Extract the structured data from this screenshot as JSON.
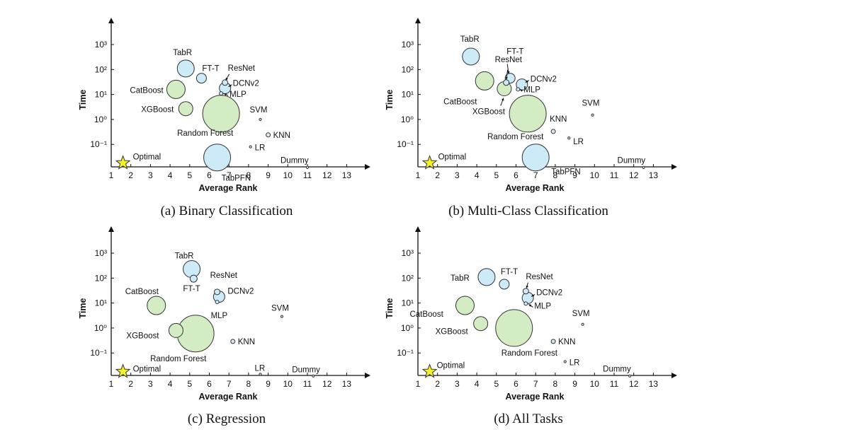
{
  "colors": {
    "tree": "#d4ecc3",
    "nn": "#cdeaf8",
    "classic": "#d8e6ef",
    "edge": "#333333",
    "star": "#f4f02a"
  },
  "chart_data": [
    {
      "type": "scatter",
      "caption": "(a) Binary Classification",
      "xlabel": "Average Rank",
      "ylabel": "Time",
      "x_ticks": [
        "1",
        "2",
        "3",
        "4",
        "5",
        "6",
        "7",
        "8",
        "9",
        "10",
        "11",
        "12",
        "13"
      ],
      "y_ticks": [
        "10⁻¹",
        "10⁰",
        "10¹",
        "10²",
        "10³"
      ],
      "ylim_log10": [
        -1.9,
        3.3
      ],
      "points": [
        {
          "name": "TabR",
          "x": 4.8,
          "y": 110,
          "size": 12,
          "group": "nn",
          "label": "TabR"
        },
        {
          "name": "FT-T",
          "x": 5.6,
          "y": 45,
          "size": 7,
          "group": "nn",
          "label": "FT-T"
        },
        {
          "name": "ResNet",
          "x": 6.8,
          "y": 30,
          "size": 4,
          "group": "nn",
          "label": "ResNet"
        },
        {
          "name": "DCNv2",
          "x": 6.8,
          "y": 18,
          "size": 8,
          "group": "nn",
          "label": "DCNv2"
        },
        {
          "name": "MLP",
          "x": 6.6,
          "y": 11,
          "size": 2.5,
          "group": "nn",
          "label": "MLP"
        },
        {
          "name": "CatBoost",
          "x": 4.3,
          "y": 16,
          "size": 13,
          "group": "tree",
          "label": "CatBoost"
        },
        {
          "name": "XGBoost",
          "x": 4.8,
          "y": 2.7,
          "size": 10,
          "group": "tree",
          "label": "XGBoost"
        },
        {
          "name": "Random Forest",
          "x": 6.6,
          "y": 1.7,
          "size": 26,
          "group": "tree",
          "label": "Random Forest"
        },
        {
          "name": "SVM",
          "x": 8.6,
          "y": 1.0,
          "size": 1.5,
          "group": "classic",
          "label": "SVM"
        },
        {
          "name": "KNN",
          "x": 9.0,
          "y": 0.24,
          "size": 3,
          "group": "classic",
          "label": "KNN"
        },
        {
          "name": "LR",
          "x": 8.1,
          "y": 0.08,
          "size": 1.5,
          "group": "classic",
          "label": "LR"
        },
        {
          "name": "TabPFN",
          "x": 6.4,
          "y": 0.03,
          "size": 19,
          "group": "nn",
          "label": "TabPFN"
        },
        {
          "name": "Dummy",
          "x": 11.0,
          "y": 0.012,
          "size": 1.3,
          "group": "classic",
          "label": "Dummy"
        },
        {
          "name": "Optimal",
          "x": 1.6,
          "y": 0.018,
          "size": 0,
          "group": "star",
          "label": "Optimal"
        }
      ]
    },
    {
      "type": "scatter",
      "caption": "(b) Multi-Class Classification",
      "xlabel": "Average Rank",
      "ylabel": "Time",
      "x_ticks": [
        "1",
        "2",
        "3",
        "4",
        "5",
        "6",
        "7",
        "8",
        "9",
        "10",
        "11",
        "12",
        "13"
      ],
      "y_ticks": [
        "10⁻¹",
        "10⁰",
        "10¹",
        "10²",
        "10³"
      ],
      "ylim_log10": [
        -1.9,
        3.3
      ],
      "points": [
        {
          "name": "TabR",
          "x": 3.7,
          "y": 330,
          "size": 12,
          "group": "nn",
          "label": "TabR"
        },
        {
          "name": "ResNet",
          "x": 5.5,
          "y": 30,
          "size": 4,
          "group": "nn",
          "label": "ResNet"
        },
        {
          "name": "FT-T",
          "x": 5.7,
          "y": 45,
          "size": 7,
          "group": "nn",
          "label": "FT-T"
        },
        {
          "name": "DCNv2",
          "x": 6.3,
          "y": 25,
          "size": 8,
          "group": "nn",
          "label": "DCNv2"
        },
        {
          "name": "MLP",
          "x": 6.1,
          "y": 16,
          "size": 2.5,
          "group": "nn",
          "label": "MLP"
        },
        {
          "name": "CatBoost",
          "x": 4.4,
          "y": 35,
          "size": 13,
          "group": "tree",
          "label": "CatBoost"
        },
        {
          "name": "XGBoost",
          "x": 5.4,
          "y": 17,
          "size": 10,
          "group": "tree",
          "label": "XGBoost"
        },
        {
          "name": "Random Forest",
          "x": 6.6,
          "y": 1.7,
          "size": 26,
          "group": "tree",
          "label": "Random Forest"
        },
        {
          "name": "SVM",
          "x": 9.9,
          "y": 1.5,
          "size": 1.5,
          "group": "classic",
          "label": "SVM"
        },
        {
          "name": "KNN",
          "x": 7.9,
          "y": 0.33,
          "size": 3,
          "group": "classic",
          "label": "KNN"
        },
        {
          "name": "LR",
          "x": 8.7,
          "y": 0.18,
          "size": 1.5,
          "group": "classic",
          "label": "LR"
        },
        {
          "name": "TabPFN",
          "x": 7.0,
          "y": 0.03,
          "size": 19,
          "group": "nn",
          "label": "TabPFN"
        },
        {
          "name": "Dummy",
          "x": 12.5,
          "y": 0.012,
          "size": 1.3,
          "group": "classic",
          "label": "Dummy"
        },
        {
          "name": "Optimal",
          "x": 1.6,
          "y": 0.018,
          "size": 0,
          "group": "star",
          "label": "Optimal"
        }
      ]
    },
    {
      "type": "scatter",
      "caption": "(c) Regression",
      "xlabel": "Average Rank",
      "ylabel": "Time",
      "x_ticks": [
        "1",
        "2",
        "3",
        "4",
        "5",
        "6",
        "7",
        "8",
        "9",
        "10",
        "11",
        "12",
        "13"
      ],
      "y_ticks": [
        "10⁻¹",
        "10⁰",
        "10¹",
        "10²",
        "10³"
      ],
      "ylim_log10": [
        -1.9,
        3.3
      ],
      "points": [
        {
          "name": "TabR",
          "x": 5.1,
          "y": 230,
          "size": 12,
          "group": "nn",
          "label": "TabR"
        },
        {
          "name": "FT-T",
          "x": 5.2,
          "y": 95,
          "size": 5,
          "group": "nn",
          "label": "FT-T"
        },
        {
          "name": "ResNet",
          "x": 6.4,
          "y": 28,
          "size": 4,
          "group": "nn",
          "label": "ResNet"
        },
        {
          "name": "DCNv2",
          "x": 6.5,
          "y": 18,
          "size": 8,
          "group": "nn",
          "label": "DCNv2"
        },
        {
          "name": "MLP",
          "x": 6.4,
          "y": 11,
          "size": 2.5,
          "group": "nn",
          "label": "MLP"
        },
        {
          "name": "CatBoost",
          "x": 3.3,
          "y": 8,
          "size": 13,
          "group": "tree",
          "label": "CatBoost"
        },
        {
          "name": "XGBoost",
          "x": 4.3,
          "y": 0.8,
          "size": 10,
          "group": "tree",
          "label": "XGBoost"
        },
        {
          "name": "Random Forest",
          "x": 5.3,
          "y": 0.6,
          "size": 26,
          "group": "tree",
          "label": "Random Forest"
        },
        {
          "name": "SVM",
          "x": 9.7,
          "y": 2.9,
          "size": 1.5,
          "group": "classic",
          "label": "SVM"
        },
        {
          "name": "KNN",
          "x": 7.2,
          "y": 0.29,
          "size": 3,
          "group": "classic",
          "label": "KNN"
        },
        {
          "name": "LR",
          "x": 8.6,
          "y": 0.014,
          "size": 1.5,
          "group": "classic",
          "label": "LR"
        },
        {
          "name": "Dummy",
          "x": 11.3,
          "y": 0.012,
          "size": 1.3,
          "group": "classic",
          "label": "Dummy"
        },
        {
          "name": "Optimal",
          "x": 1.6,
          "y": 0.018,
          "size": 0,
          "group": "star",
          "label": "Optimal"
        }
      ]
    },
    {
      "type": "scatter",
      "caption": "(d) All Tasks",
      "xlabel": "Average Rank",
      "ylabel": "Time",
      "x_ticks": [
        "1",
        "2",
        "3",
        "4",
        "5",
        "6",
        "7",
        "8",
        "9",
        "10",
        "11",
        "12",
        "13"
      ],
      "y_ticks": [
        "10⁻¹",
        "10⁰",
        "10¹",
        "10²",
        "10³"
      ],
      "ylim_log10": [
        -1.9,
        3.3
      ],
      "points": [
        {
          "name": "TabR",
          "x": 4.5,
          "y": 110,
          "size": 12,
          "group": "nn",
          "label": "TabR"
        },
        {
          "name": "FT-T",
          "x": 5.4,
          "y": 57,
          "size": 7,
          "group": "nn",
          "label": "FT-T"
        },
        {
          "name": "ResNet",
          "x": 6.5,
          "y": 30,
          "size": 4,
          "group": "nn",
          "label": "ResNet"
        },
        {
          "name": "DCNv2",
          "x": 6.6,
          "y": 16,
          "size": 8,
          "group": "nn",
          "label": "DCNv2"
        },
        {
          "name": "MLP",
          "x": 6.5,
          "y": 9.5,
          "size": 2.5,
          "group": "nn",
          "label": "MLP"
        },
        {
          "name": "CatBoost",
          "x": 3.4,
          "y": 8,
          "size": 13,
          "group": "tree",
          "label": "CatBoost"
        },
        {
          "name": "XGBoost",
          "x": 4.2,
          "y": 1.5,
          "size": 10,
          "group": "tree",
          "label": "XGBoost"
        },
        {
          "name": "Random Forest",
          "x": 5.9,
          "y": 1.0,
          "size": 26,
          "group": "tree",
          "label": "Random Forest"
        },
        {
          "name": "SVM",
          "x": 9.4,
          "y": 1.4,
          "size": 1.5,
          "group": "classic",
          "label": "SVM"
        },
        {
          "name": "KNN",
          "x": 7.9,
          "y": 0.29,
          "size": 3,
          "group": "classic",
          "label": "KNN"
        },
        {
          "name": "LR",
          "x": 8.5,
          "y": 0.045,
          "size": 1.5,
          "group": "classic",
          "label": "LR"
        },
        {
          "name": "Dummy",
          "x": 11.8,
          "y": 0.012,
          "size": 1.3,
          "group": "classic",
          "label": "Dummy"
        },
        {
          "name": "Optimal",
          "x": 1.6,
          "y": 0.018,
          "size": 0,
          "group": "star",
          "label": "Optimal"
        }
      ]
    }
  ]
}
